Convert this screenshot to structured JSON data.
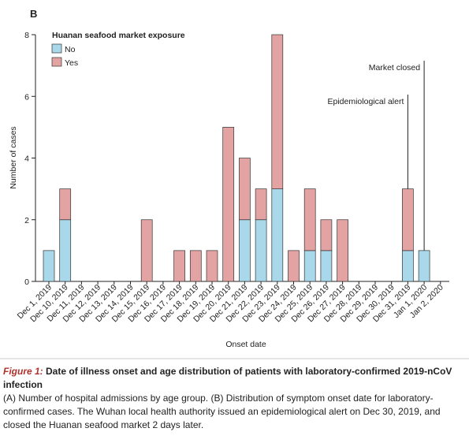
{
  "chart_data": {
    "type": "stacked_bar",
    "panel_label": "B",
    "legend_title": "Huanan seafood market exposure",
    "x_label": "Onset date",
    "y_label": "Number of cases",
    "categories": [
      "Dec 1, 2019",
      "Dec 10, 2019",
      "Dec 11, 2019",
      "Dec 12, 2019",
      "Dec 13, 2019",
      "Dec 14, 2019",
      "Dec 15, 2019",
      "Dec 16, 2019",
      "Dec 17, 2019",
      "Dec 18, 2019",
      "Dec 19, 2019",
      "Dec 20, 2019",
      "Dec 21, 2019",
      "Dec 22, 2019",
      "Dec 23, 2019",
      "Dec 24, 2019",
      "Dec 25, 2019",
      "Dec 26, 2019",
      "Dec 27, 2019",
      "Dec 28, 2019",
      "Dec 29, 2019",
      "Dec 30, 2019",
      "Dec 31, 2019",
      "Jan 1, 2020",
      "Jan 2, 2020"
    ],
    "series": [
      {
        "name": "No",
        "color": "#a8d8ea",
        "values": [
          1,
          2,
          0,
          0,
          0,
          0,
          0,
          0,
          0,
          0,
          0,
          0,
          2,
          2,
          3,
          0,
          1,
          1,
          0,
          0,
          0,
          0,
          1,
          1,
          0
        ]
      },
      {
        "name": "Yes",
        "color": "#e3a3a3",
        "values": [
          0,
          1,
          0,
          0,
          0,
          0,
          2,
          0,
          1,
          1,
          1,
          5,
          2,
          1,
          5,
          1,
          2,
          1,
          2,
          0,
          0,
          0,
          2,
          0,
          0
        ]
      }
    ],
    "ylim": [
      0,
      8
    ],
    "yticks": [
      0,
      2,
      4,
      6,
      8
    ],
    "annotations": [
      "Market closed",
      "Epidemiological alert"
    ]
  },
  "caption": {
    "label": "Figure 1:",
    "title": "Date of illness onset and age distribution of patients with laboratory-confirmed 2019-nCoV infection",
    "text": "(A) Number of hospital admissions by age group. (B) Distribution of symptom onset date for laboratory-confirmed cases. The Wuhan local health authority issued an epidemiological alert on Dec 30, 2019, and closed the Huanan seafood market 2 days later."
  }
}
